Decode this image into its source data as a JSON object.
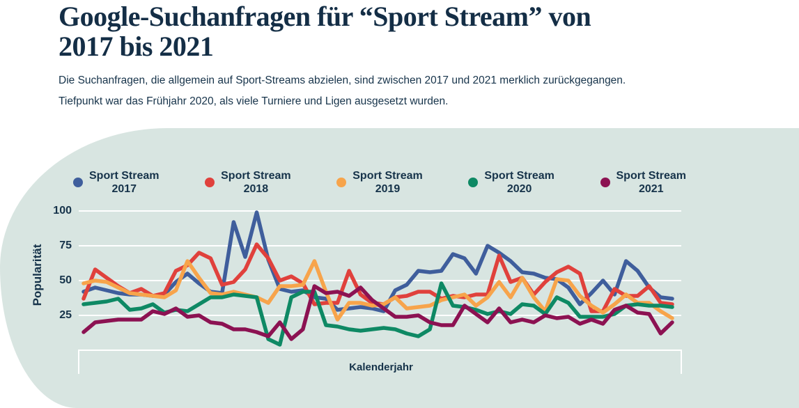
{
  "header": {
    "title_line1": "Google-Suchanfragen für “Sport Stream” von",
    "title_line2": "2017 bis 2021",
    "subtitle_line1": "Die Suchanfragen, die allgemein auf Sport-Streams abzielen, sind zwischen 2017 und 2021 merklich zurückgegangen.",
    "subtitle_line2": "Tiefpunkt war das Frühjahr 2020, als viele Turniere und Ligen ausgesetzt wurden."
  },
  "legend": {
    "items": [
      {
        "label": "Sport Stream",
        "year": "2017",
        "color": "#3F5E9C"
      },
      {
        "label": "Sport Stream",
        "year": "2018",
        "color": "#E0413C"
      },
      {
        "label": "Sport Stream",
        "year": "2019",
        "color": "#F7A44B"
      },
      {
        "label": "Sport Stream",
        "year": "2020",
        "color": "#0E8964"
      },
      {
        "label": "Sport Stream",
        "year": "2021",
        "color": "#8C1252"
      }
    ]
  },
  "colors": {
    "panel_background": "#D8E5E1",
    "text_navy": "#16334A",
    "title_navy": "#142E46",
    "gridline": "#FFFFFF"
  },
  "chart_data": {
    "type": "line",
    "title": "Google-Suchanfragen für “Sport Stream” von 2017 bis 2021",
    "xlabel": "Kalenderjahr",
    "ylabel": "Popularität",
    "ylim": [
      0,
      100
    ],
    "yticks": [
      100,
      75,
      50,
      25
    ],
    "n_points_per_series": 52,
    "grid": "horizontal white lines at 25/50/75/100",
    "legend_position": "top",
    "series": [
      {
        "name": "Sport Stream 2017",
        "color": "#3F5E9C",
        "values": [
          42,
          45,
          43,
          41,
          40,
          40,
          39,
          40,
          49,
          55,
          48,
          42,
          41,
          92,
          67,
          99,
          65,
          44,
          42,
          43,
          38,
          37,
          29,
          30,
          31,
          30,
          28,
          43,
          47,
          57,
          56,
          57,
          69,
          66,
          55,
          75,
          70,
          64,
          56,
          55,
          52,
          51,
          45,
          33,
          41,
          50,
          40,
          64,
          57,
          45,
          38,
          37
        ]
      },
      {
        "name": "Sport Stream 2018",
        "color": "#E0413C",
        "values": [
          37,
          58,
          52,
          46,
          41,
          44,
          39,
          41,
          57,
          61,
          70,
          66,
          47,
          49,
          58,
          76,
          66,
          50,
          53,
          48,
          33,
          34,
          34,
          57,
          40,
          34,
          33,
          38,
          39,
          42,
          42,
          37,
          39,
          38,
          40,
          40,
          68,
          49,
          52,
          40,
          49,
          56,
          60,
          55,
          28,
          28,
          44,
          39,
          39,
          46,
          34,
          33
        ]
      },
      {
        "name": "Sport Stream 2019",
        "color": "#F7A44B",
        "values": [
          48,
          50,
          49,
          45,
          41,
          40,
          39,
          38,
          43,
          64,
          52,
          41,
          40,
          42,
          40,
          38,
          34,
          46,
          46,
          47,
          64,
          42,
          22,
          34,
          34,
          32,
          33,
          38,
          30,
          31,
          32,
          36,
          38,
          40,
          32,
          38,
          49,
          38,
          52,
          38,
          28,
          51,
          50,
          39,
          32,
          27,
          33,
          40,
          34,
          34,
          28,
          23
        ]
      },
      {
        "name": "Sport Stream 2020",
        "color": "#0E8964",
        "values": [
          33,
          34,
          35,
          37,
          29,
          30,
          33,
          27,
          29,
          28,
          33,
          38,
          38,
          40,
          39,
          38,
          8,
          4,
          38,
          42,
          42,
          18,
          17,
          15,
          14,
          15,
          16,
          15,
          12,
          10,
          15,
          48,
          32,
          31,
          29,
          26,
          28,
          26,
          33,
          32,
          26,
          38,
          34,
          24,
          24,
          24,
          26,
          32,
          33,
          32,
          32,
          31
        ]
      },
      {
        "name": "Sport Stream 2021",
        "color": "#8C1252",
        "values": [
          13,
          20,
          21,
          22,
          22,
          22,
          28,
          26,
          30,
          24,
          25,
          20,
          19,
          15,
          15,
          13,
          10,
          20,
          8,
          15,
          46,
          41,
          42,
          39,
          45,
          36,
          30,
          24,
          24,
          25,
          20,
          18,
          18,
          32,
          26,
          20,
          30,
          20,
          22,
          20,
          25,
          23,
          24,
          19,
          22,
          19,
          29,
          32,
          27,
          26,
          12,
          20
        ]
      }
    ]
  }
}
